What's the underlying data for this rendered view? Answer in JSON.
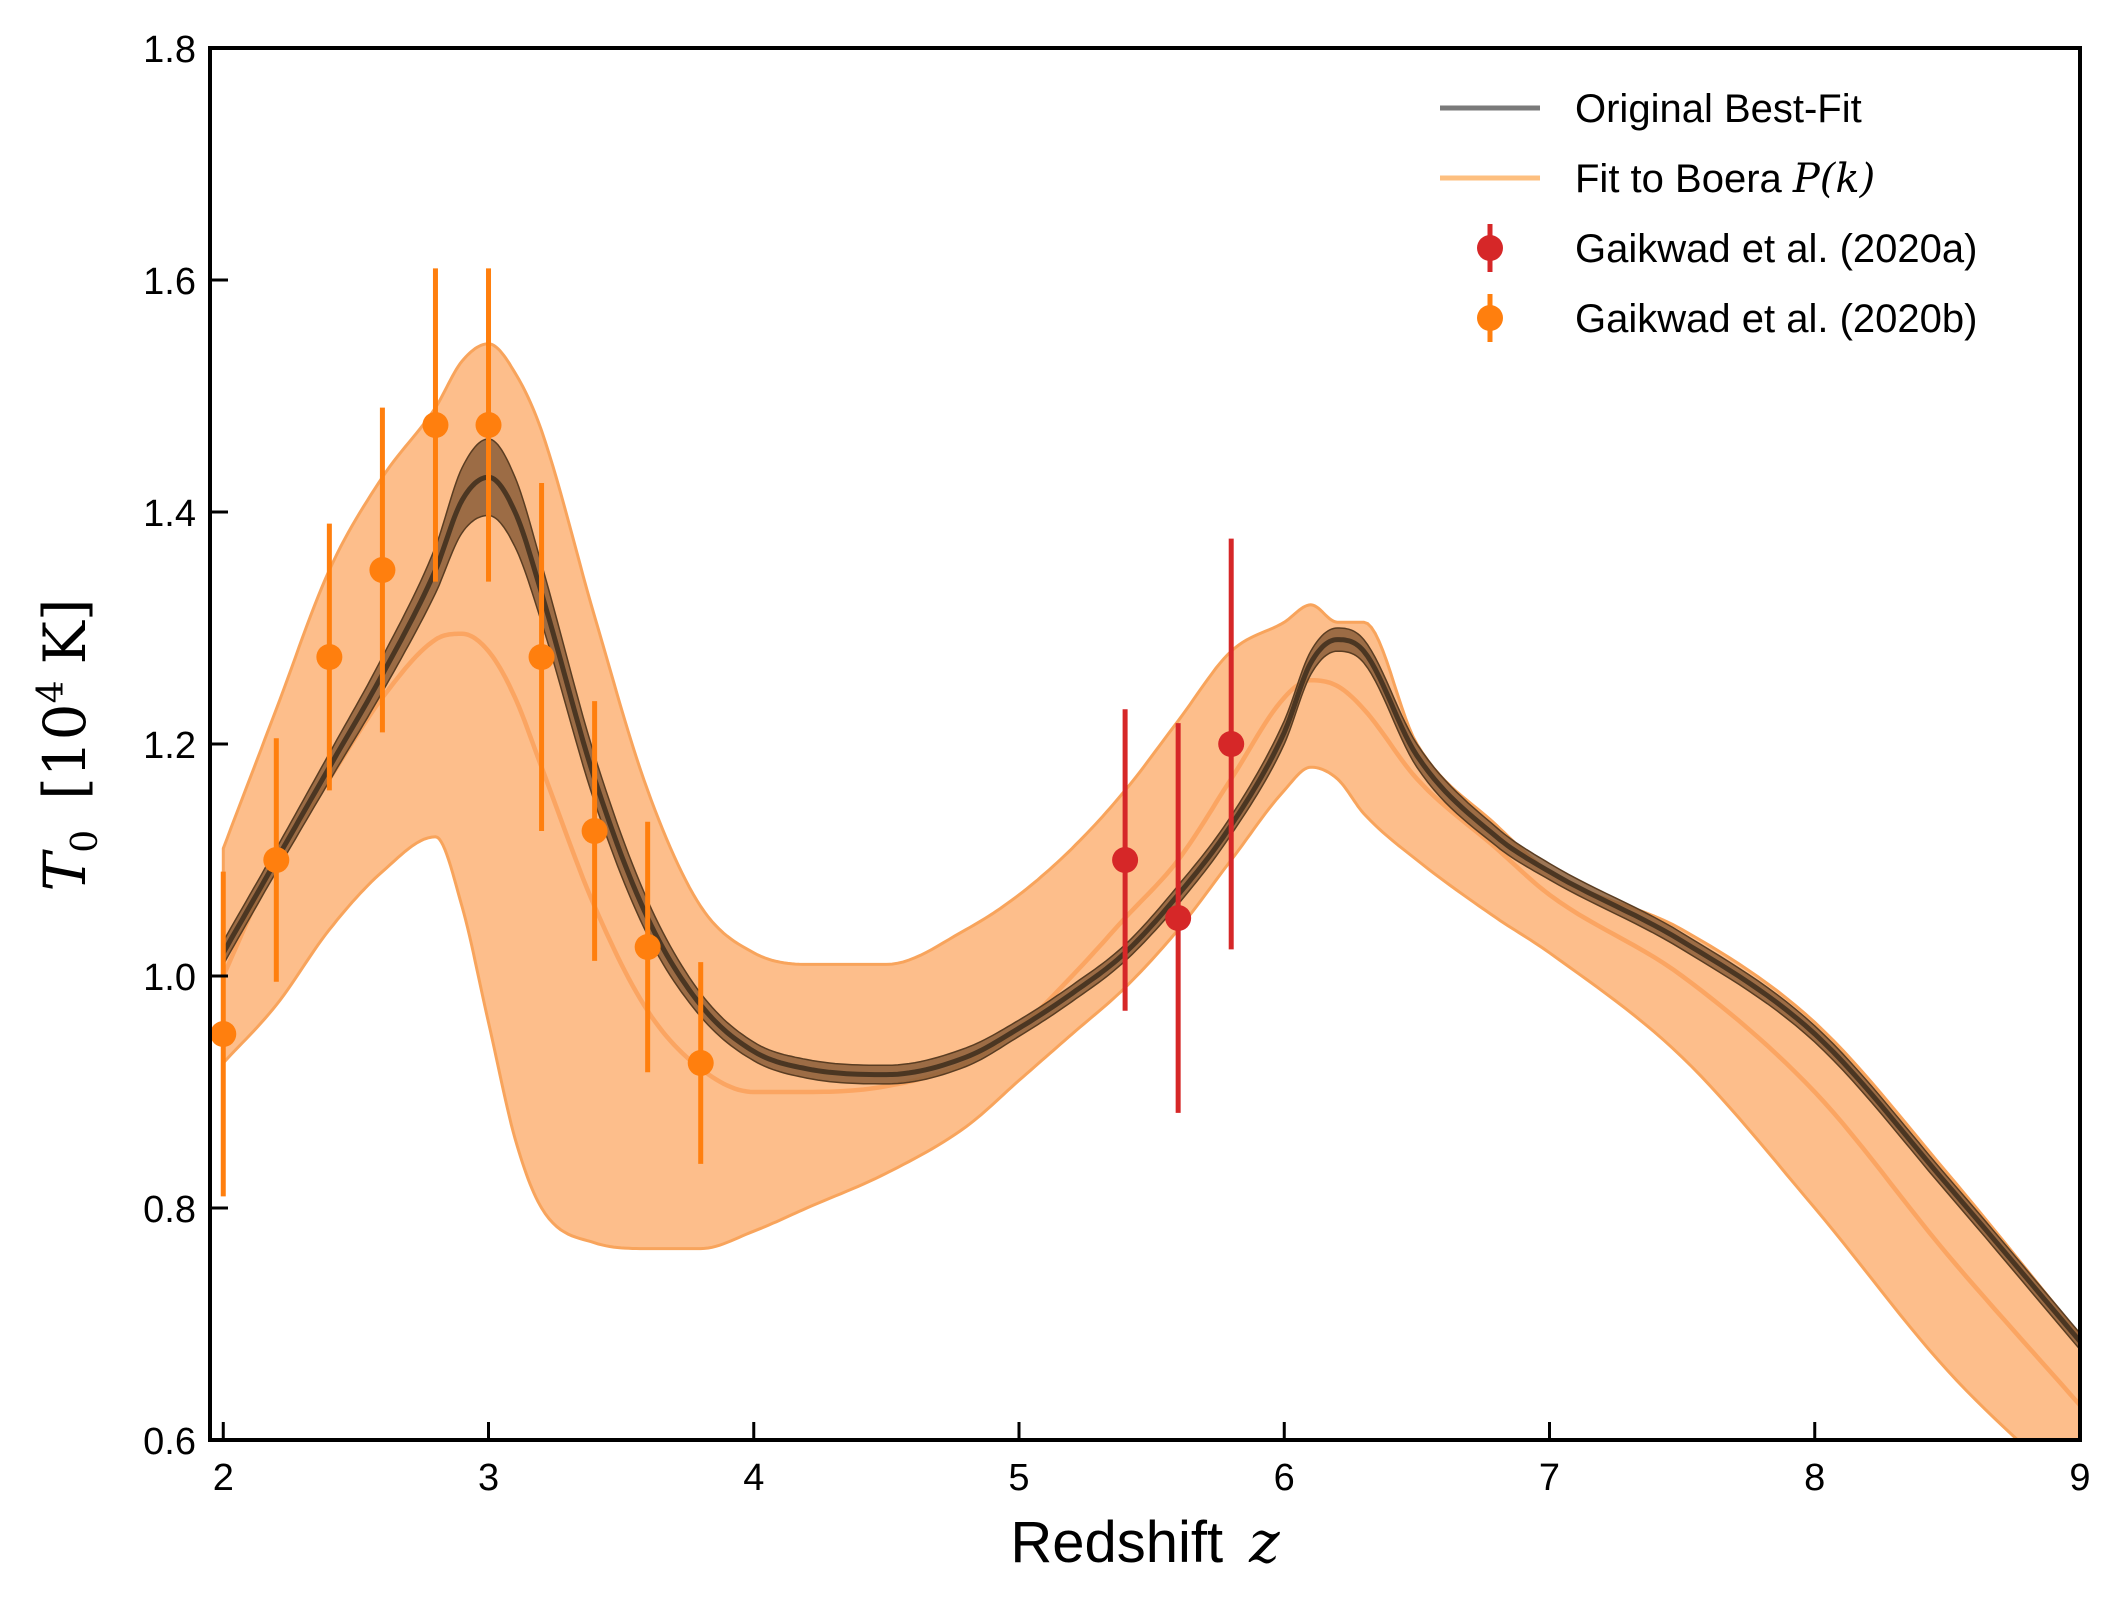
{
  "chart_data": {
    "type": "line",
    "xlabel": "Redshift",
    "xlabel_symbol": "z",
    "ylabel_symbol": "T",
    "ylabel_subscript": "0",
    "ylabel_unit_base": "10",
    "ylabel_unit_exp": "4",
    "ylabel_unit_K": "K",
    "xlim": [
      1.95,
      9.0
    ],
    "ylim": [
      0.6,
      1.8
    ],
    "x_ticks": [
      2,
      3,
      4,
      5,
      6,
      7,
      8,
      9
    ],
    "x_tick_labels": [
      "2",
      "3",
      "4",
      "5",
      "6",
      "7",
      "8",
      "9"
    ],
    "y_ticks": [
      0.6,
      0.8,
      1.0,
      1.2,
      1.4,
      1.6,
      1.8
    ],
    "y_tick_labels": [
      "0.6",
      "0.8",
      "1.0",
      "1.2",
      "1.4",
      "1.6",
      "1.8"
    ],
    "grid": false,
    "legend_position": "top-right",
    "legend": [
      {
        "label": "Original Best-Fit",
        "math": "",
        "kind": "line",
        "color": "#7a7a7a"
      },
      {
        "label": "Fit to Boera ",
        "math": "P(k)",
        "kind": "line",
        "color": "#fdbf7f"
      },
      {
        "label": "Gaikwad et al. (2020a)",
        "math": "",
        "kind": "point",
        "color": "#d62728"
      },
      {
        "label": "Gaikwad et al. (2020b)",
        "math": "",
        "kind": "point",
        "color": "#ff7f0e"
      }
    ],
    "colors": {
      "band_fill": "#fdbe8b",
      "band_edge": "#f8a45c",
      "boera_line": "#fba562",
      "orig_line": "#4b3622",
      "orig_band": "#8b5e38",
      "gaikwad_a": "#d62728",
      "gaikwad_b": "#ff7f0e"
    },
    "series": [
      {
        "name": "Original Best-Fit",
        "x": [
          2.0,
          2.2,
          2.4,
          2.6,
          2.8,
          2.9,
          3.0,
          3.1,
          3.2,
          3.4,
          3.6,
          3.8,
          4.0,
          4.2,
          4.5,
          4.8,
          5.0,
          5.2,
          5.4,
          5.6,
          5.8,
          6.0,
          6.1,
          6.2,
          6.3,
          6.5,
          6.8,
          7.0,
          7.5,
          8.0,
          8.5,
          9.0
        ],
        "y": [
          1.02,
          1.1,
          1.18,
          1.26,
          1.35,
          1.41,
          1.43,
          1.4,
          1.33,
          1.17,
          1.05,
          0.975,
          0.935,
          0.92,
          0.915,
          0.93,
          0.955,
          0.985,
          1.02,
          1.07,
          1.13,
          1.21,
          1.27,
          1.29,
          1.28,
          1.19,
          1.12,
          1.09,
          1.03,
          0.95,
          0.82,
          0.685
        ],
        "band_halfwidth": [
          0.01,
          0.01,
          0.012,
          0.015,
          0.02,
          0.028,
          0.033,
          0.03,
          0.025,
          0.02,
          0.015,
          0.01,
          0.008,
          0.008,
          0.008,
          0.008,
          0.007,
          0.007,
          0.007,
          0.008,
          0.008,
          0.01,
          0.01,
          0.01,
          0.01,
          0.01,
          0.008,
          0.007,
          0.007,
          0.007,
          0.007,
          0.007
        ]
      },
      {
        "name": "Fit to Boera P(k)",
        "x": [
          2.0,
          2.2,
          2.4,
          2.6,
          2.8,
          2.9,
          3.0,
          3.1,
          3.2,
          3.4,
          3.6,
          3.8,
          4.0,
          4.2,
          4.5,
          4.8,
          5.0,
          5.2,
          5.4,
          5.6,
          5.8,
          6.0,
          6.1,
          6.2,
          6.3,
          6.5,
          6.8,
          7.0,
          7.5,
          8.0,
          8.5,
          9.0
        ],
        "y": [
          1.0,
          1.1,
          1.17,
          1.24,
          1.29,
          1.295,
          1.28,
          1.24,
          1.18,
          1.06,
          0.97,
          0.92,
          0.9,
          0.9,
          0.905,
          0.925,
          0.955,
          1.0,
          1.05,
          1.1,
          1.17,
          1.24,
          1.255,
          1.25,
          1.23,
          1.17,
          1.11,
          1.07,
          1.0,
          0.9,
          0.76,
          0.63
        ],
        "band_upper": [
          1.11,
          1.23,
          1.35,
          1.43,
          1.49,
          1.53,
          1.545,
          1.52,
          1.47,
          1.31,
          1.16,
          1.06,
          1.02,
          1.01,
          1.01,
          1.04,
          1.07,
          1.11,
          1.16,
          1.22,
          1.28,
          1.305,
          1.32,
          1.305,
          1.305,
          1.2,
          1.13,
          1.09,
          1.04,
          0.96,
          0.83,
          0.69
        ],
        "band_lower": [
          0.925,
          0.975,
          1.04,
          1.09,
          1.12,
          1.06,
          0.96,
          0.86,
          0.8,
          0.77,
          0.765,
          0.765,
          0.78,
          0.8,
          0.83,
          0.87,
          0.91,
          0.95,
          0.99,
          1.04,
          1.1,
          1.16,
          1.18,
          1.17,
          1.14,
          1.1,
          1.05,
          1.02,
          0.93,
          0.8,
          0.66,
          0.55
        ]
      }
    ],
    "points": [
      {
        "name": "Gaikwad et al. (2020a)",
        "x": [
          5.4,
          5.6,
          5.8
        ],
        "y": [
          1.1,
          1.05,
          1.2
        ],
        "yerr": [
          0.13,
          0.168,
          0.177
        ]
      },
      {
        "name": "Gaikwad et al. (2020b)",
        "x": [
          2.0,
          2.2,
          2.4,
          2.6,
          2.8,
          3.0,
          3.2,
          3.4,
          3.6,
          3.8
        ],
        "y": [
          0.95,
          1.1,
          1.275,
          1.35,
          1.475,
          1.475,
          1.275,
          1.125,
          1.025,
          0.925
        ],
        "yerr": [
          0.14,
          0.105,
          0.115,
          0.14,
          0.135,
          0.135,
          0.15,
          0.112,
          0.108,
          0.087
        ]
      }
    ]
  }
}
